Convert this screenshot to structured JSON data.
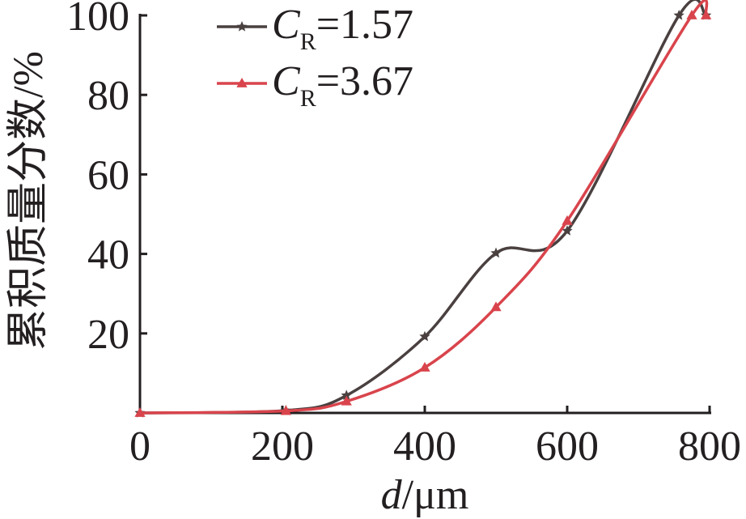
{
  "chart_data": {
    "type": "line",
    "title": "",
    "xlabel": {
      "var": "d",
      "unit": "/μm"
    },
    "ylabel": "累积质量分数/%",
    "xlim": [
      0,
      800
    ],
    "ylim": [
      0,
      100
    ],
    "xticks": [
      0,
      200,
      400,
      600,
      800
    ],
    "yticks": [
      20,
      40,
      60,
      80,
      100
    ],
    "grid": false,
    "legend_position": "top-left",
    "series": [
      {
        "name": "C_R=1.57",
        "legend": {
          "sym": "C",
          "sub": "R",
          "rest": "=1.57"
        },
        "color": "#4a4040",
        "marker": "star",
        "x": [
          0,
          205,
          290,
          400,
          500,
          600,
          757,
          795
        ],
        "y": [
          0,
          0.6,
          4.4,
          19.2,
          40.2,
          45.8,
          100,
          100
        ]
      },
      {
        "name": "C_R=3.67",
        "legend": {
          "sym": "C",
          "sub": "R",
          "rest": "=3.67"
        },
        "color": "#d9444c",
        "marker": "triangle",
        "x": [
          0,
          205,
          290,
          400,
          500,
          600,
          775,
          795
        ],
        "y": [
          0,
          0.5,
          2.9,
          11.4,
          26.6,
          48.3,
          100,
          100
        ]
      }
    ]
  }
}
